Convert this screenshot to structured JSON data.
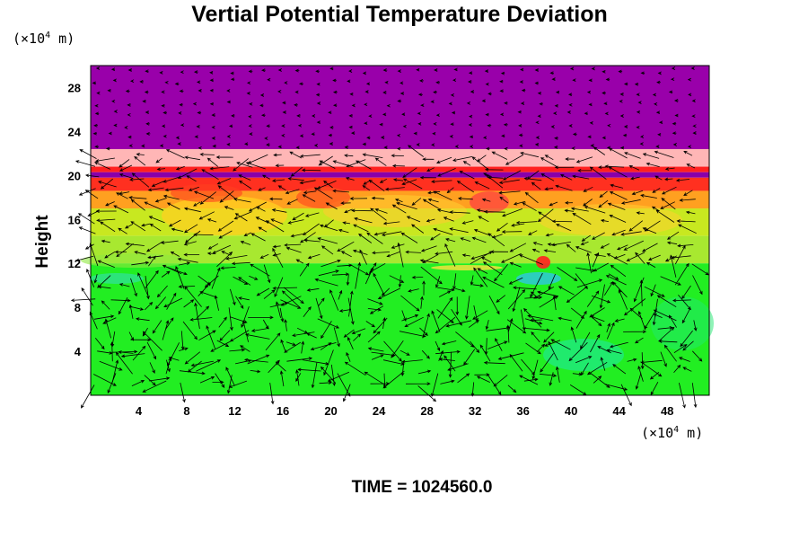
{
  "chart_data": {
    "type": "heatmap",
    "title": "Vertial Potential Temperature Deviation",
    "ylabel": "Height",
    "y_unit": "(×10⁴ m)",
    "x_unit": "(×10⁴ m)",
    "footer": "TIME = 1024560.0",
    "xlim": [
      0,
      51.5
    ],
    "ylim": [
      0,
      30
    ],
    "xticks": [
      4,
      8,
      12,
      16,
      20,
      24,
      28,
      32,
      36,
      40,
      44,
      48
    ],
    "yticks": [
      4,
      8,
      12,
      16,
      20,
      24,
      28
    ],
    "overlay": "wind vector arrows",
    "bands": [
      {
        "y": [
          22.4,
          30
        ],
        "color": "#9900aa"
      },
      {
        "y": [
          20.8,
          22.4
        ],
        "color": "#ffb6b6"
      },
      {
        "y": [
          20.3,
          20.8
        ],
        "color": "#ff2020"
      },
      {
        "y": [
          19.8,
          20.3
        ],
        "color": "#8800aa"
      },
      {
        "y": [
          18.6,
          19.8
        ],
        "color": "#ff3020"
      },
      {
        "y": [
          17.0,
          18.6
        ],
        "color": "#ffa020"
      },
      {
        "y": [
          14.5,
          17.0
        ],
        "color": "#c8e820"
      },
      {
        "y": [
          12.0,
          14.5
        ],
        "color": "#a8e830"
      },
      {
        "y": [
          0,
          12.0
        ],
        "color": "#22ee22"
      }
    ]
  }
}
